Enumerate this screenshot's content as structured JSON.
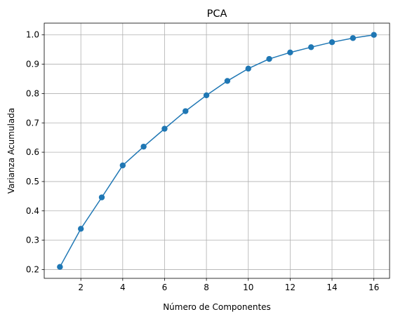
{
  "chart_data": {
    "type": "line",
    "title": "PCA",
    "xlabel": "Número de Componentes",
    "ylabel": "Varianza Acumulada",
    "x": [
      1,
      2,
      3,
      4,
      5,
      6,
      7,
      8,
      9,
      10,
      11,
      12,
      13,
      14,
      15,
      16
    ],
    "series": [
      {
        "values": [
          0.209,
          0.339,
          0.446,
          0.555,
          0.619,
          0.68,
          0.74,
          0.794,
          0.843,
          0.885,
          0.918,
          0.94,
          0.958,
          0.975,
          0.989,
          1.0
        ]
      }
    ],
    "xlim": [
      0.25,
      16.75
    ],
    "ylim": [
      0.17,
      1.04
    ],
    "xticks": [
      2,
      4,
      6,
      8,
      10,
      12,
      14,
      16
    ],
    "yticks": [
      0.2,
      0.3,
      0.4,
      0.5,
      0.6,
      0.7,
      0.8,
      0.9,
      1.0
    ],
    "ytick_labels": [
      "0.2",
      "0.3",
      "0.4",
      "0.5",
      "0.6",
      "0.7",
      "0.8",
      "0.9",
      "1.0"
    ],
    "grid": true,
    "marker": "circle",
    "line_color": "#1f77b4"
  }
}
